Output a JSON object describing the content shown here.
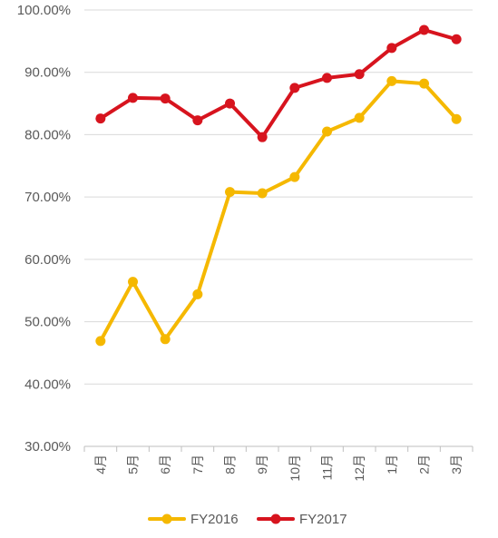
{
  "chart_data": {
    "type": "line",
    "categories": [
      "4月",
      "5月",
      "6月",
      "7月",
      "8月",
      "9月",
      "10月",
      "11月",
      "12月",
      "1月",
      "2月",
      "3月"
    ],
    "series": [
      {
        "name": "FY2016",
        "color": "#F5B800",
        "values": [
          46.9,
          56.4,
          47.2,
          54.4,
          70.8,
          70.6,
          73.2,
          80.5,
          82.7,
          88.6,
          88.2,
          82.5
        ]
      },
      {
        "name": "FY2017",
        "color": "#D7141E",
        "values": [
          82.6,
          85.9,
          85.8,
          82.3,
          85.0,
          79.6,
          87.5,
          89.1,
          89.7,
          93.9,
          96.8,
          95.3
        ]
      }
    ],
    "ylim": [
      30,
      100
    ],
    "yticks": [
      "30.00%",
      "40.00%",
      "50.00%",
      "60.00%",
      "70.00%",
      "80.00%",
      "90.00%",
      "100.00%"
    ],
    "ytick_values": [
      30,
      40,
      50,
      60,
      70,
      80,
      90,
      100
    ],
    "grid": true,
    "legend_position": "bottom",
    "title": "",
    "xlabel": "",
    "ylabel": ""
  }
}
